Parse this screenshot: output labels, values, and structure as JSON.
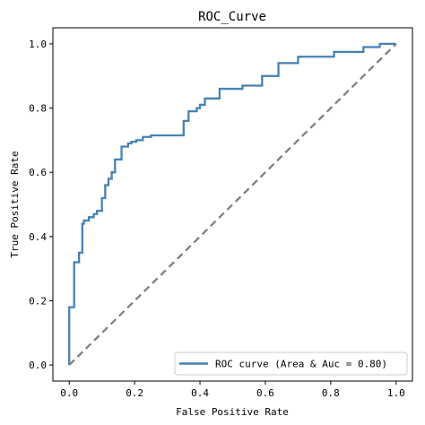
{
  "chart_data": {
    "type": "line",
    "title": "ROC_Curve",
    "xlabel": "False Positive Rate",
    "ylabel": "True Positive Rate",
    "xlim": [
      -0.05,
      1.05
    ],
    "ylim": [
      -0.05,
      1.05
    ],
    "x_ticks": [
      "0.0",
      "0.2",
      "0.4",
      "0.6",
      "0.8",
      "1.0"
    ],
    "y_ticks": [
      "0.0",
      "0.2",
      "0.4",
      "0.6",
      "0.8",
      "1.0"
    ],
    "grid": false,
    "legend_position": "lower-right",
    "series": [
      {
        "name": "ROC curve (Area & Auc = 0.80)",
        "color": "#4682b4",
        "style": "solid",
        "x": [
          0.0,
          0.0,
          0.015,
          0.015,
          0.03,
          0.03,
          0.04,
          0.04,
          0.045,
          0.045,
          0.06,
          0.06,
          0.075,
          0.075,
          0.085,
          0.085,
          0.1,
          0.1,
          0.11,
          0.11,
          0.12,
          0.12,
          0.13,
          0.13,
          0.14,
          0.14,
          0.16,
          0.16,
          0.18,
          0.18,
          0.19,
          0.19,
          0.205,
          0.205,
          0.225,
          0.225,
          0.25,
          0.25,
          0.35,
          0.35,
          0.365,
          0.365,
          0.39,
          0.39,
          0.4,
          0.4,
          0.415,
          0.415,
          0.46,
          0.46,
          0.53,
          0.53,
          0.59,
          0.59,
          0.64,
          0.64,
          0.7,
          0.7,
          0.81,
          0.81,
          0.9,
          0.9,
          0.95,
          0.95,
          1.0
        ],
        "y": [
          0.0,
          0.18,
          0.18,
          0.32,
          0.32,
          0.35,
          0.35,
          0.44,
          0.44,
          0.45,
          0.45,
          0.46,
          0.46,
          0.47,
          0.47,
          0.48,
          0.48,
          0.52,
          0.52,
          0.56,
          0.56,
          0.58,
          0.58,
          0.6,
          0.6,
          0.64,
          0.64,
          0.68,
          0.68,
          0.69,
          0.69,
          0.695,
          0.695,
          0.7,
          0.7,
          0.71,
          0.71,
          0.715,
          0.715,
          0.76,
          0.76,
          0.79,
          0.79,
          0.8,
          0.8,
          0.81,
          0.81,
          0.83,
          0.83,
          0.86,
          0.86,
          0.87,
          0.87,
          0.9,
          0.9,
          0.94,
          0.94,
          0.96,
          0.96,
          0.975,
          0.975,
          0.99,
          0.99,
          1.0,
          1.0
        ]
      },
      {
        "name": "",
        "color": "#808080",
        "style": "dashed",
        "x": [
          0.0,
          1.0
        ],
        "y": [
          0.0,
          1.0
        ]
      }
    ]
  }
}
